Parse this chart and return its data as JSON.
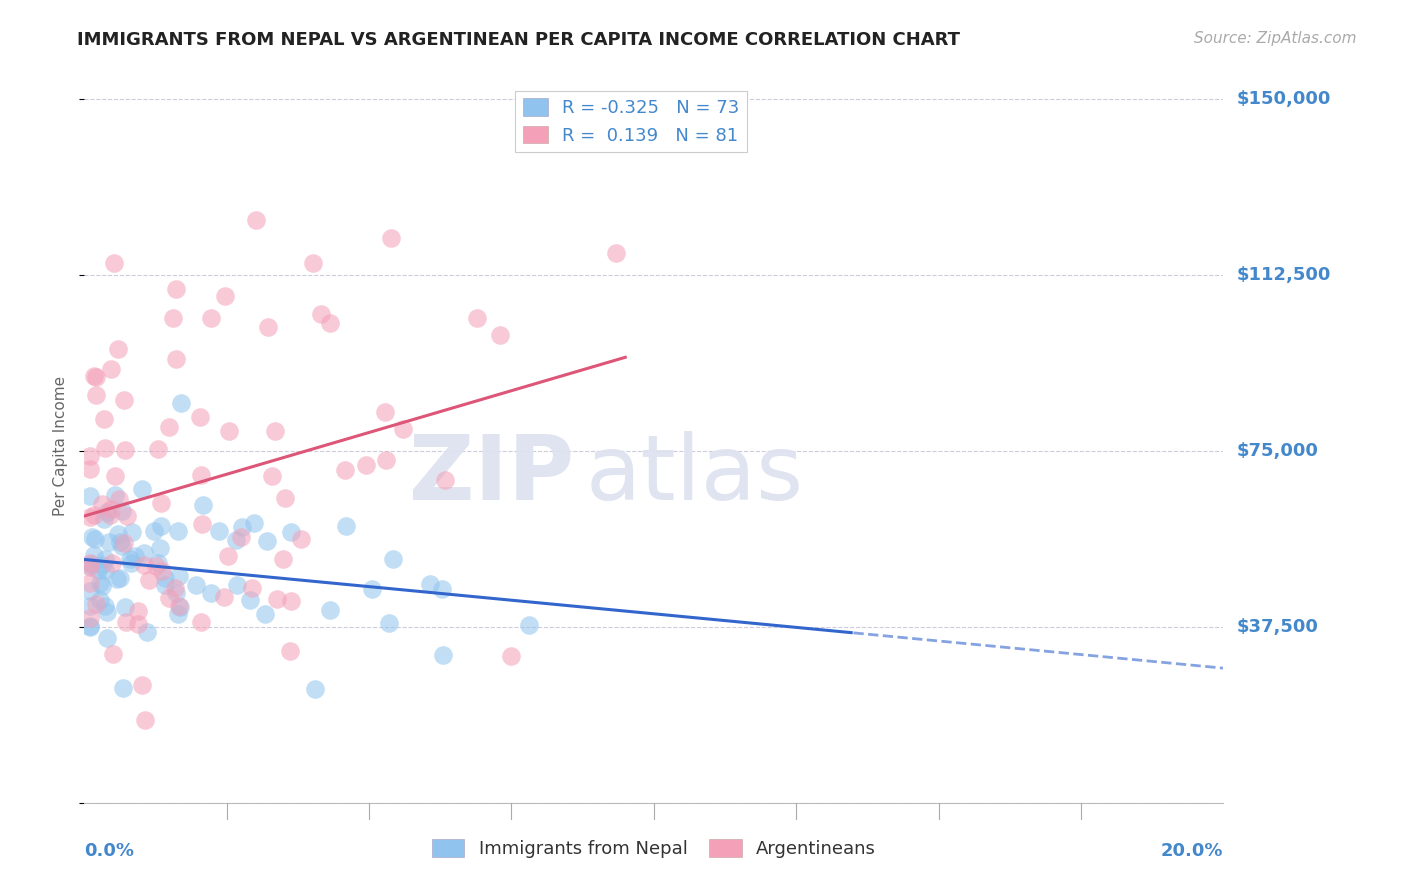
{
  "title": "IMMIGRANTS FROM NEPAL VS ARGENTINEAN PER CAPITA INCOME CORRELATION CHART",
  "source": "Source: ZipAtlas.com",
  "ylabel": "Per Capita Income",
  "yticks": [
    0,
    37500,
    75000,
    112500,
    150000
  ],
  "ytick_labels": [
    "",
    "$37,500",
    "$75,000",
    "$112,500",
    "$150,000"
  ],
  "xlim": [
    0.0,
    0.2
  ],
  "ylim": [
    0,
    152000
  ],
  "nepal_R": -0.325,
  "nepal_N": 73,
  "arg_R": 0.139,
  "arg_N": 81,
  "nepal_color": "#90c4ee",
  "arg_color": "#f4a0b8",
  "nepal_line_color": "#3366cc",
  "arg_line_color": "#dd5577",
  "background_color": "#ffffff",
  "grid_color": "#ccccdd",
  "title_color": "#222222",
  "axis_label_color": "#4488cc",
  "legend_labels": [
    "Immigrants from Nepal",
    "Argentineans"
  ],
  "nepal_legend_text": "R = -0.325   N = 73",
  "arg_legend_text": "R =  0.139   N = 81",
  "nepal_seed": 42,
  "arg_seed": 99,
  "watermark_zip_color": "#dde0f0",
  "watermark_atlas_color": "#dde0f0"
}
